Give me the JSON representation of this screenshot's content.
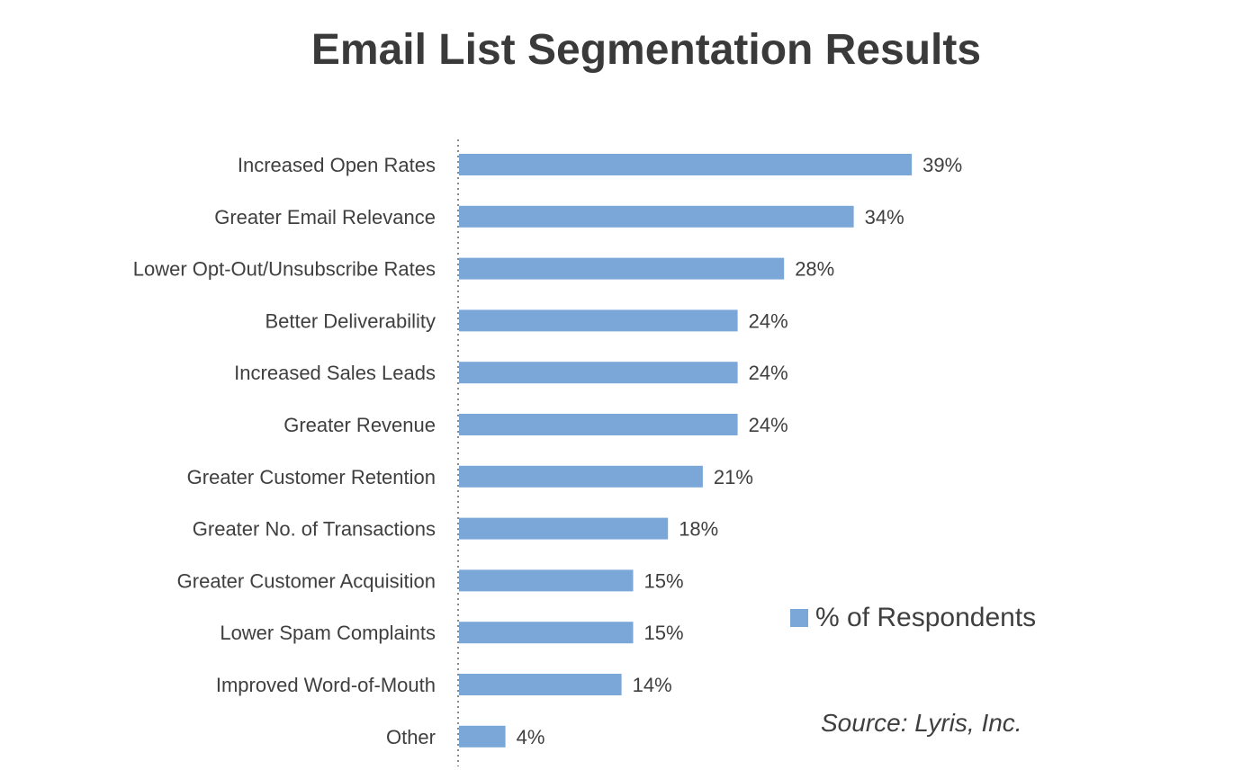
{
  "chart_data": {
    "type": "bar",
    "orientation": "horizontal",
    "title": "Email List Segmentation Results",
    "categories": [
      "Increased Open Rates",
      "Greater Email Relevance",
      "Lower Opt-Out/Unsubscribe Rates",
      "Better Deliverability",
      "Increased Sales Leads",
      "Greater Revenue",
      "Greater Customer Retention",
      "Greater No. of Transactions",
      "Greater Customer Acquisition",
      "Lower Spam Complaints",
      "Improved Word-of-Mouth",
      "Other"
    ],
    "series": [
      {
        "name": "% of Respondents",
        "values": [
          39,
          34,
          28,
          24,
          24,
          24,
          21,
          18,
          15,
          15,
          14,
          4
        ],
        "labels": [
          "39%",
          "34%",
          "28%",
          "24%",
          "24%",
          "24%",
          "21%",
          "18%",
          "15%",
          "15%",
          "14%",
          "4%"
        ],
        "color": "#7ba7d8"
      }
    ],
    "xlim": [
      0,
      39
    ],
    "grid": false,
    "legend_position": "right",
    "source": "Source: Lyris, Inc."
  }
}
